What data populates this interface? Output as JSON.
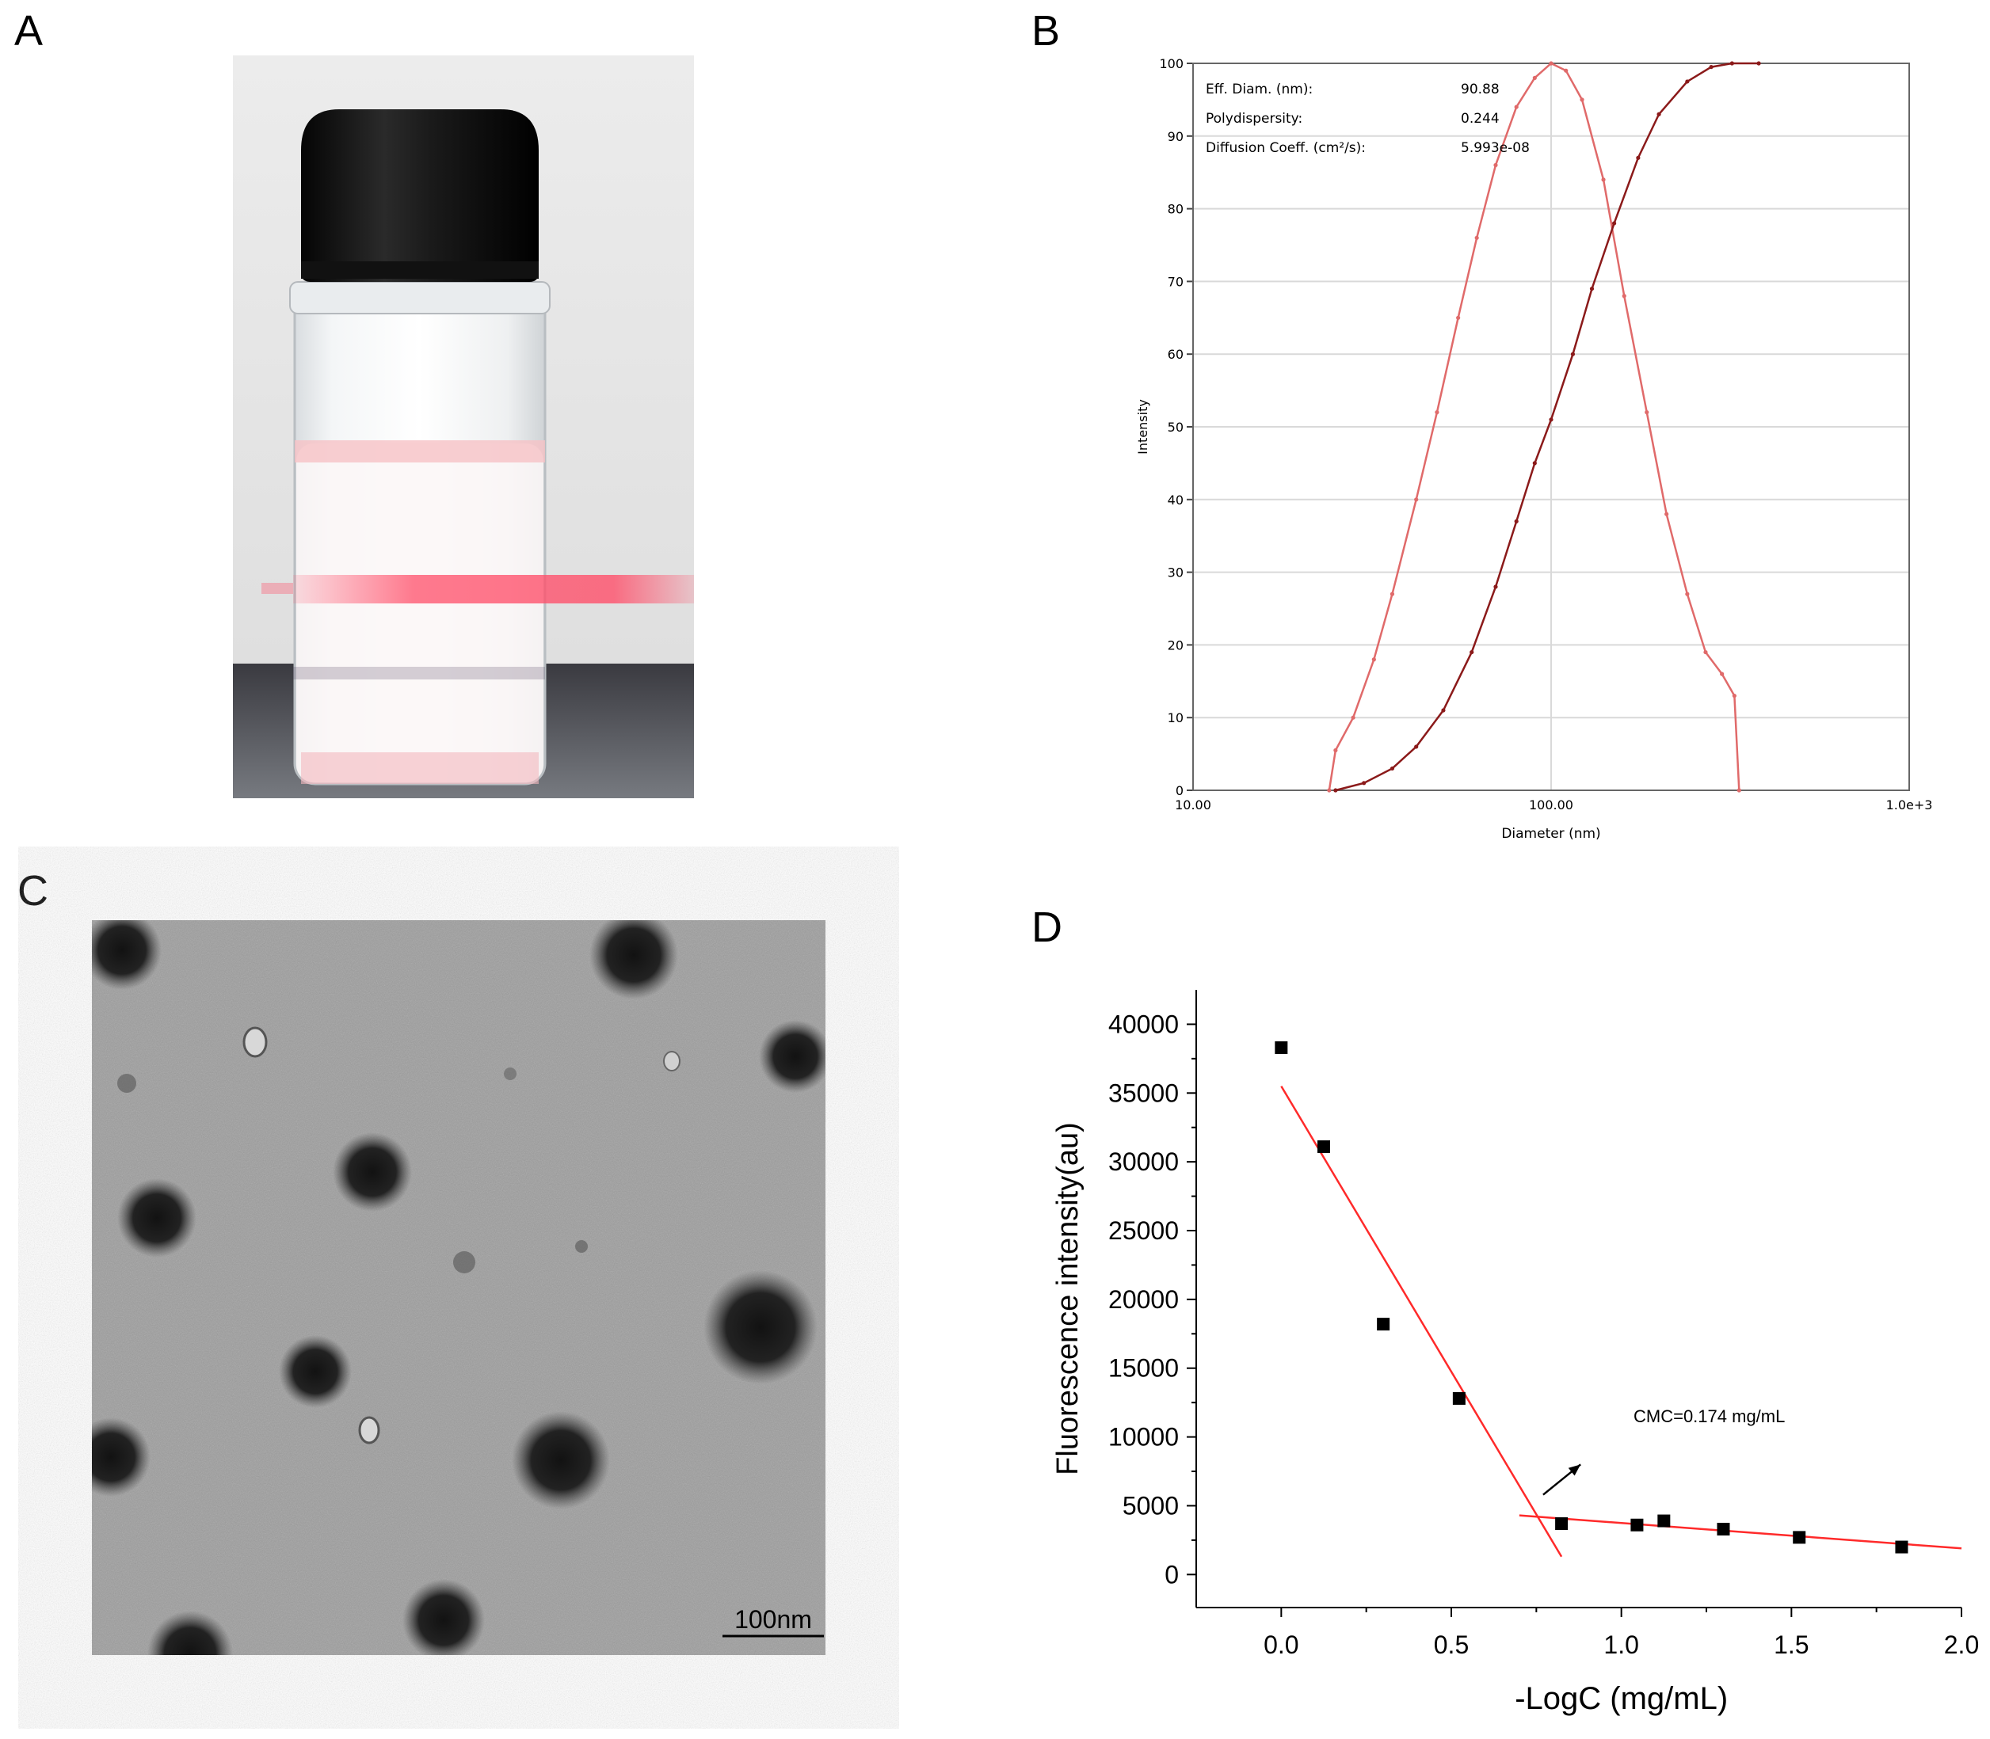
{
  "panels": {
    "a": "A",
    "b": "B",
    "c": "C",
    "d": "D"
  },
  "colors": {
    "dist_line": "#e06a6a",
    "cum_line": "#8b1a1a",
    "fit_line": "#ff2a2a",
    "points": "#000000",
    "grid": "#d9d9d9"
  },
  "panel_c": {
    "scale_label": "100nm"
  },
  "chart_data": [
    {
      "type": "line",
      "panel": "B",
      "title": "",
      "xlabel": "Diameter (nm)",
      "ylabel": "Intensity",
      "xscale": "log",
      "xlim": [
        10,
        1000
      ],
      "ylim": [
        0,
        100
      ],
      "x_tick_labels": [
        "10.00",
        "100.00",
        "1.0e+3"
      ],
      "y_tick_labels": [
        "0",
        "10",
        "20",
        "30",
        "40",
        "50",
        "60",
        "70",
        "80",
        "90",
        "100"
      ],
      "grid": true,
      "stats": [
        {
          "label": "Eff. Diam. (nm):",
          "value": "90.88"
        },
        {
          "label": "Polydispersity:",
          "value": "0.244"
        },
        {
          "label": "Diffusion Coeff. (cm²/s):",
          "value": "5.993e-08"
        }
      ],
      "series": [
        {
          "name": "",
          "kind": "distribution",
          "points": [
            [
              24,
              0
            ],
            [
              25,
              5.5
            ],
            [
              28,
              10
            ],
            [
              32,
              18
            ],
            [
              36,
              27
            ],
            [
              42,
              40
            ],
            [
              48,
              52
            ],
            [
              55,
              65
            ],
            [
              62,
              76
            ],
            [
              70,
              86
            ],
            [
              80,
              94
            ],
            [
              90,
              98
            ],
            [
              100,
              100
            ],
            [
              110,
              99
            ],
            [
              122,
              95
            ],
            [
              140,
              84
            ],
            [
              160,
              68
            ],
            [
              185,
              52
            ],
            [
              210,
              38
            ],
            [
              240,
              27
            ],
            [
              270,
              19
            ],
            [
              300,
              16
            ],
            [
              325,
              13
            ],
            [
              335,
              0
            ]
          ]
        },
        {
          "name": "",
          "kind": "cumulative",
          "points": [
            [
              25,
              0
            ],
            [
              30,
              1
            ],
            [
              36,
              3
            ],
            [
              42,
              6
            ],
            [
              50,
              11
            ],
            [
              60,
              19
            ],
            [
              70,
              28
            ],
            [
              80,
              37
            ],
            [
              90,
              45
            ],
            [
              100,
              51
            ],
            [
              115,
              60
            ],
            [
              130,
              69
            ],
            [
              150,
              78
            ],
            [
              175,
              87
            ],
            [
              200,
              93
            ],
            [
              240,
              97.5
            ],
            [
              280,
              99.5
            ],
            [
              320,
              100
            ],
            [
              380,
              100
            ]
          ]
        }
      ]
    },
    {
      "type": "scatter",
      "panel": "D",
      "title": "",
      "xlabel": "-LogC (mg/mL)",
      "ylabel": "Fluorescence intensity(au)",
      "xlim": [
        -0.25,
        2.0
      ],
      "ylim": [
        -2400,
        42500
      ],
      "x_tick_labels": [
        "0.0",
        "0.5",
        "1.0",
        "1.5",
        "2.0"
      ],
      "y_tick_labels": [
        "0",
        "5000",
        "10000",
        "15000",
        "20000",
        "25000",
        "30000",
        "35000",
        "40000"
      ],
      "grid": false,
      "annotation": "CMC=0.174 mg/mL",
      "points": [
        [
          0.0,
          38300
        ],
        [
          0.125,
          31100
        ],
        [
          0.3,
          18200
        ],
        [
          0.523,
          12800
        ],
        [
          0.824,
          3700
        ],
        [
          1.046,
          3600
        ],
        [
          1.125,
          3900
        ],
        [
          1.3,
          3300
        ],
        [
          1.523,
          2700
        ],
        [
          1.824,
          2000
        ]
      ],
      "fit_lines": [
        [
          [
            0.0,
            35500
          ],
          [
            0.824,
            1300
          ]
        ],
        [
          [
            0.7,
            4300
          ],
          [
            2.0,
            1900
          ]
        ]
      ],
      "arrow": [
        [
          0.77,
          5800
        ],
        [
          0.88,
          8000
        ]
      ]
    }
  ]
}
